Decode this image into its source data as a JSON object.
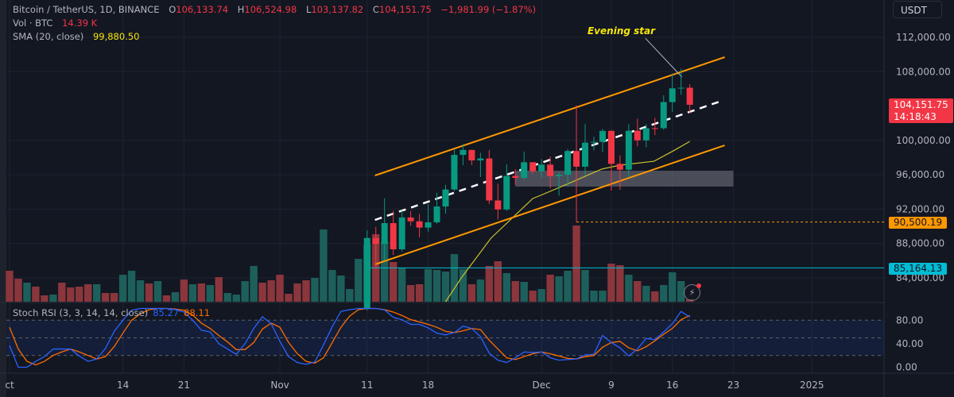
{
  "header": {
    "symbol": "Bitcoin / TetherUS, 1D, BINANCE",
    "o_label": "O",
    "o": "106,133.74",
    "h_label": "H",
    "h": "106,524.98",
    "l_label": "L",
    "l": "103,137.82",
    "c_label": "C",
    "c": "104,151.75",
    "change": "−1,981.99 (−1.87%)",
    "vol_label": "Vol · BTC",
    "vol": "14.39 K",
    "sma_label": "SMA (20, close)",
    "sma": "99,880.50"
  },
  "currency_button": "USDT",
  "annotation": {
    "text": "Evening star",
    "arrow_from": [
      72.9,
      111900
    ],
    "arrow_to": [
      77.1,
      107380
    ]
  },
  "badges": {
    "last_price": "104,151.75",
    "countdown": "14:18:43",
    "level_1": "90,500.19",
    "level_2": "85,164.13"
  },
  "levels": {
    "orange_dashed": 90500.19,
    "cyan": 85164.13
  },
  "colors": {
    "up": "#089981",
    "down": "#f23645",
    "vol_up": "#1d5f5b",
    "vol_down": "#8a363c",
    "channel": "#ff9800",
    "sma": "#c9c12a",
    "k": "#2962ff",
    "d": "#ff6d00"
  },
  "price_axis": [
    "112,000.00",
    "108,000.00",
    "100,000.00",
    "96,000.00",
    "92,000.00",
    "88,000.00",
    "84,000.00"
  ],
  "price_axis_values": [
    112000,
    108000,
    100000,
    96000,
    92000,
    88000,
    84000
  ],
  "stoch_axis": [
    "80.00",
    "40.00",
    "0.00"
  ],
  "stoch_axis_values": [
    80,
    40,
    0
  ],
  "date_labels": [
    {
      "i": 0,
      "t": "ct"
    },
    {
      "i": 13,
      "t": "14"
    },
    {
      "i": 20,
      "t": "21"
    },
    {
      "i": 31,
      "t": "Nov"
    },
    {
      "i": 41,
      "t": "11"
    },
    {
      "i": 48,
      "t": "18"
    },
    {
      "i": 61,
      "t": "Dec"
    },
    {
      "i": 69,
      "t": "9"
    },
    {
      "i": 76,
      "t": "16"
    },
    {
      "i": 83,
      "t": "23"
    },
    {
      "i": 92,
      "t": "2025"
    }
  ],
  "stoch": {
    "label": "Stoch RSI (3, 3, 14, 14, close)",
    "k_value": "85.27",
    "d_value": "88.11"
  },
  "chart_data": {
    "type": "candlestick",
    "first_index": 41,
    "candles_ohlc": [
      [
        80370,
        89530,
        80216,
        88647
      ],
      [
        88648,
        89940,
        85072,
        87952
      ],
      [
        87952,
        93265,
        86127,
        90375
      ],
      [
        90375,
        91790,
        86668,
        87325
      ],
      [
        87325,
        91850,
        87073,
        91032
      ],
      [
        91032,
        91779,
        90056,
        90587
      ],
      [
        90587,
        91449,
        88722,
        89855
      ],
      [
        89855,
        92594,
        89376,
        90464
      ],
      [
        90464,
        93906,
        90310,
        92310
      ],
      [
        92310,
        94831,
        91500,
        94286
      ],
      [
        94286,
        98988,
        94100,
        98317
      ],
      [
        98317,
        99588,
        97122,
        98892
      ],
      [
        98892,
        98908,
        97136,
        97672
      ],
      [
        97672,
        98564,
        95734,
        97900
      ],
      [
        97900,
        98871,
        92600,
        93010
      ],
      [
        93010,
        94973,
        90791,
        91965
      ],
      [
        91965,
        97208,
        91792,
        95863
      ],
      [
        95863,
        96650,
        94827,
        95643
      ],
      [
        95643,
        98693,
        95407,
        97460
      ],
      [
        97460,
        97463,
        96150,
        96407
      ],
      [
        96407,
        97836,
        95693,
        97185
      ],
      [
        97185,
        98130,
        94395,
        95840
      ],
      [
        95840,
        96305,
        93578,
        96002
      ],
      [
        96002,
        99000,
        94660,
        98768
      ],
      [
        98768,
        104088,
        90500,
        96945
      ],
      [
        96945,
        101898,
        95981,
        99740
      ],
      [
        99740,
        100439,
        98844,
        99831
      ],
      [
        99831,
        101350,
        98657,
        101109
      ],
      [
        101109,
        101215,
        94150,
        97276
      ],
      [
        97276,
        98270,
        94256,
        96593
      ],
      [
        96593,
        101888,
        95658,
        101125
      ],
      [
        101125,
        102540,
        99311,
        100004
      ],
      [
        100004,
        101895,
        99205,
        101424
      ],
      [
        101424,
        102650,
        100609,
        101420
      ],
      [
        101420,
        105250,
        101237,
        104463
      ],
      [
        104463,
        107793,
        103333,
        106058
      ],
      [
        106058,
        108353,
        105321,
        106133
      ],
      [
        106133,
        106524,
        103137,
        104151.75
      ]
    ],
    "volume_k": [
      39,
      29,
      24,
      19,
      8,
      9,
      24,
      18,
      19,
      22,
      22,
      11,
      11,
      34,
      39,
      27,
      23,
      26,
      8,
      12,
      28,
      22,
      23,
      21,
      31,
      11,
      9,
      26,
      45,
      24,
      27,
      34,
      10,
      23,
      27,
      30,
      91,
      40,
      33,
      16,
      54,
      72,
      85,
      76,
      50,
      43,
      21,
      22,
      41,
      40,
      38,
      60,
      41,
      22,
      28,
      45,
      51,
      36,
      26,
      25,
      14,
      16,
      34,
      32,
      39,
      96,
      40,
      14,
      14,
      48,
      46,
      34,
      26,
      20,
      13,
      21,
      37,
      26,
      3
    ],
    "volume_dir_pre": "ddudduddddudduuudududududuuuuddddddu uuuuu",
    "sma20": [
      [
        50,
        81226
      ],
      [
        51.8,
        84000
      ],
      [
        55.2,
        88620
      ],
      [
        60,
        93240
      ],
      [
        60.9,
        93610
      ],
      [
        63.9,
        94900
      ],
      [
        67.9,
        96660
      ],
      [
        70,
        97120
      ],
      [
        73.9,
        97580
      ],
      [
        76.1,
        98780
      ],
      [
        78,
        99880.5
      ]
    ],
    "channel_upper": [
      [
        41.9,
        95920
      ],
      [
        82,
        109690
      ]
    ],
    "channel_lower": [
      [
        41.9,
        85570
      ],
      [
        82,
        99430
      ]
    ],
    "channel_mid": [
      [
        41.9,
        90745
      ],
      [
        81.4,
        104515
      ]
    ],
    "zone": {
      "from_index": 58,
      "to_index": 83,
      "top": 96475,
      "bottom": 94626
    },
    "stoch_k": [
      37,
      0,
      0,
      10,
      18,
      31,
      31,
      31,
      19,
      10,
      14,
      32,
      61,
      80,
      97,
      100,
      100,
      100,
      100,
      98,
      94,
      80,
      63,
      60,
      40,
      31,
      22,
      40,
      66,
      86,
      74,
      44,
      18,
      8,
      5,
      9,
      38,
      69,
      95,
      98,
      100,
      100,
      100,
      97.5,
      85,
      81,
      73,
      73,
      67,
      58,
      55,
      59,
      70,
      66,
      52,
      24,
      12,
      8,
      16,
      26,
      25,
      26,
      16,
      12,
      13,
      14,
      21,
      22,
      54,
      42,
      33,
      19,
      31,
      49,
      47,
      60,
      74,
      95,
      85.27
    ],
    "stoch_d": [
      68,
      31,
      10,
      4,
      10,
      20,
      26,
      31,
      26,
      20,
      14,
      18,
      35,
      58,
      80,
      91,
      98,
      100,
      100,
      99,
      97,
      89,
      75,
      66,
      54,
      43,
      30,
      30,
      42,
      65,
      75,
      68,
      42,
      23,
      10,
      7,
      16,
      42,
      68,
      87,
      98,
      100,
      100,
      98,
      94,
      88,
      81,
      77,
      73,
      68,
      61,
      59,
      62,
      66,
      64,
      46,
      31,
      16,
      13,
      18,
      23,
      26,
      23,
      19,
      15,
      14,
      18,
      20,
      34,
      42,
      44,
      33,
      28,
      35,
      45,
      56,
      66,
      81,
      88.11
    ],
    "price_range": [
      84000,
      112000
    ],
    "stoch_range": [
      0,
      100
    ]
  }
}
